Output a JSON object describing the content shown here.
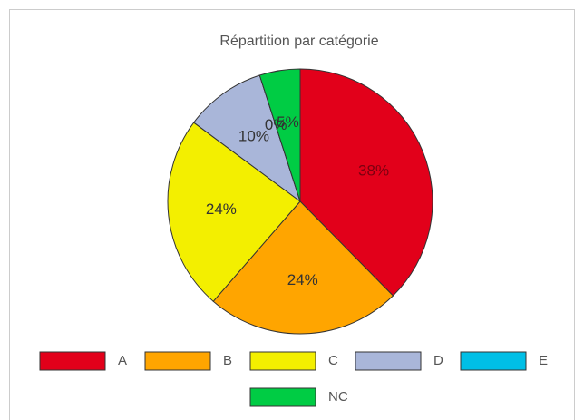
{
  "chart_data": {
    "type": "pie",
    "title": "Répartition par catégorie",
    "categories": [
      "A",
      "B",
      "C",
      "D",
      "E",
      "NC"
    ],
    "values": [
      38,
      24,
      24,
      10,
      0,
      5
    ],
    "value_labels": [
      "38%",
      "24%",
      "24%",
      "10%",
      "0%",
      "5%"
    ],
    "colors": [
      "#e2001a",
      "#ffa500",
      "#f3ef00",
      "#a9b6d9",
      "#00bfe6",
      "#00cc44"
    ],
    "legend": "bottom"
  }
}
